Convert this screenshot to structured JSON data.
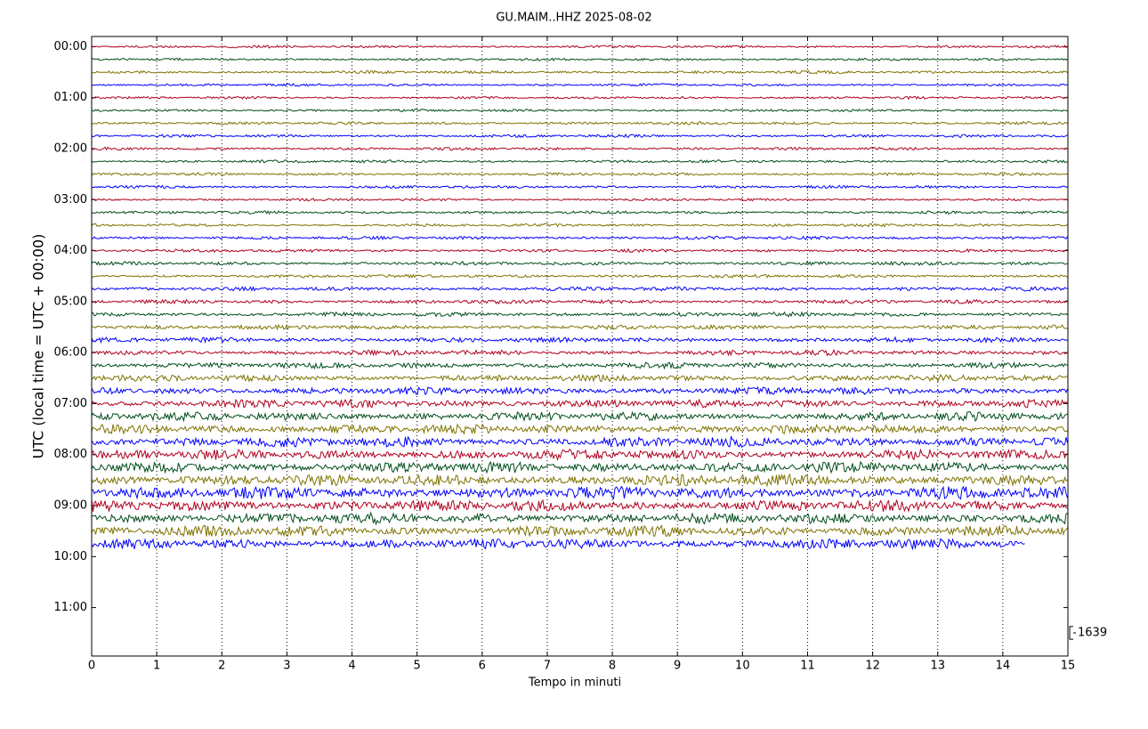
{
  "chart_data": {
    "type": "helicorder",
    "title": "GU.MAIM..HHZ 2025-08-02",
    "x_label": "Tempo in minuti",
    "y_label": "UTC (local time = UTC + 00:00)",
    "xlim": [
      0,
      15
    ],
    "xticks": [
      0,
      1,
      2,
      3,
      4,
      5,
      6,
      7,
      8,
      9,
      10,
      11,
      12,
      13,
      14,
      15
    ],
    "ylim": [
      -0.2,
      11.95
    ],
    "invert_y": true,
    "yticks": [
      {
        "value": 0,
        "label": "00:00"
      },
      {
        "value": 1,
        "label": "01:00"
      },
      {
        "value": 2,
        "label": "02:00"
      },
      {
        "value": 3,
        "label": "03:00"
      },
      {
        "value": 4,
        "label": "04:00"
      },
      {
        "value": 5,
        "label": "05:00"
      },
      {
        "value": 6,
        "label": "06:00"
      },
      {
        "value": 7,
        "label": "07:00"
      },
      {
        "value": 8,
        "label": "08:00"
      },
      {
        "value": 9,
        "label": "09:00"
      },
      {
        "value": 10,
        "label": "10:00"
      },
      {
        "value": 11,
        "label": "11:00"
      }
    ],
    "grid": true,
    "colors": [
      "#b0001e",
      "#004d1a",
      "#7f7300",
      "#0000ff"
    ],
    "scale_bar": 1639,
    "traces": {
      "times": [
        0,
        0.25,
        0.5,
        0.75,
        1,
        1.25,
        1.5,
        1.75,
        2,
        2.25,
        2.5,
        2.75,
        3,
        3.25,
        3.5,
        3.75,
        4,
        4.25,
        4.5,
        4.75,
        5,
        5.25,
        5.5,
        5.75,
        6,
        6.25,
        6.5,
        6.75,
        7,
        7.25,
        7.5,
        7.75,
        8,
        8.25,
        8.5,
        8.75,
        9,
        9.25,
        9.5,
        9.75
      ],
      "amplitudes": [
        350,
        350,
        400,
        350,
        350,
        350,
        400,
        400,
        400,
        400,
        400,
        400,
        350,
        400,
        400,
        450,
        450,
        500,
        450,
        550,
        550,
        600,
        600,
        700,
        700,
        800,
        900,
        1000,
        1100,
        1200,
        1300,
        1400,
        1400,
        1500,
        1600,
        1700,
        1600,
        1500,
        1500,
        1400
      ],
      "ends": [
        15,
        15,
        15,
        15,
        15,
        15,
        15,
        15,
        15,
        15,
        15,
        15,
        15,
        15,
        15,
        15,
        15,
        15,
        15,
        15,
        15,
        15,
        15,
        15,
        15,
        15,
        15,
        15,
        15,
        15,
        15,
        15,
        15,
        15,
        15,
        15,
        15,
        15,
        15,
        14.35
      ]
    }
  }
}
